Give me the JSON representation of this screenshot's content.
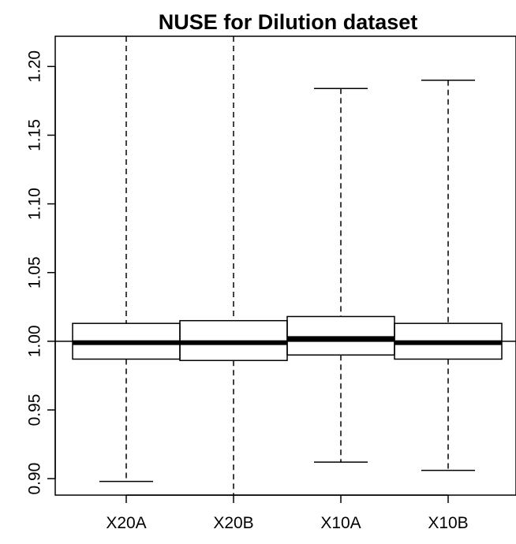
{
  "chart_data": {
    "type": "box",
    "title": "NUSE for Dilution dataset",
    "xlabel": "",
    "ylabel": "",
    "ylim": [
      0.888,
      1.222
    ],
    "yticks": [
      0.9,
      0.95,
      1.0,
      1.05,
      1.1,
      1.15,
      1.2
    ],
    "ytick_labels": [
      "0.90",
      "0.95",
      "1.00",
      "1.05",
      "1.10",
      "1.15",
      "1.20"
    ],
    "reference_line": 1.0,
    "categories": [
      "X20A",
      "X20B",
      "X10A",
      "X10B"
    ],
    "boxes": [
      {
        "label": "X20A",
        "whisker_low": 0.898,
        "q1": 0.987,
        "median": 0.999,
        "q3": 1.013,
        "whisker_high": 1.222,
        "high_staple_visible": false,
        "low_staple_visible": true
      },
      {
        "label": "X20B",
        "whisker_low": 0.888,
        "q1": 0.986,
        "median": 0.999,
        "q3": 1.015,
        "whisker_high": 1.222,
        "high_staple_visible": false,
        "low_staple_visible": false
      },
      {
        "label": "X10A",
        "whisker_low": 0.912,
        "q1": 0.99,
        "median": 1.002,
        "q3": 1.018,
        "whisker_high": 1.184,
        "high_staple_visible": true,
        "low_staple_visible": true
      },
      {
        "label": "X10B",
        "whisker_low": 0.906,
        "q1": 0.987,
        "median": 0.999,
        "q3": 1.013,
        "whisker_high": 1.19,
        "high_staple_visible": true,
        "low_staple_visible": true
      }
    ],
    "grid": false,
    "legend": "none"
  }
}
